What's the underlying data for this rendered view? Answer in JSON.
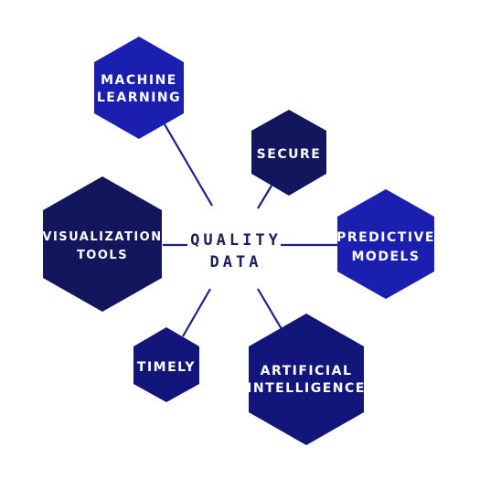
{
  "diagram": {
    "center": {
      "line1": "QUALITY",
      "line2": "DATA"
    },
    "nodes": [
      {
        "id": "machine-learning",
        "line1": "MACHINE",
        "line2": "LEARNING",
        "color": "#1a1fb0"
      },
      {
        "id": "secure",
        "line1": "SECURE",
        "line2": "",
        "color": "#12165c"
      },
      {
        "id": "predictive-models",
        "line1": "PREDICTIVE",
        "line2": "MODELS",
        "color": "#1a1fb0"
      },
      {
        "id": "artificial-intelligence",
        "line1": "ARTIFICIAL",
        "line2": "INTELLIGENCE",
        "color": "#12167a"
      },
      {
        "id": "timely",
        "line1": "TIMELY",
        "line2": "",
        "color": "#12167a"
      },
      {
        "id": "visualization-tools",
        "line1": "VISUALIZATION",
        "line2": "TOOLS",
        "color": "#12165c"
      }
    ],
    "line_color": "#1a1f8c"
  }
}
